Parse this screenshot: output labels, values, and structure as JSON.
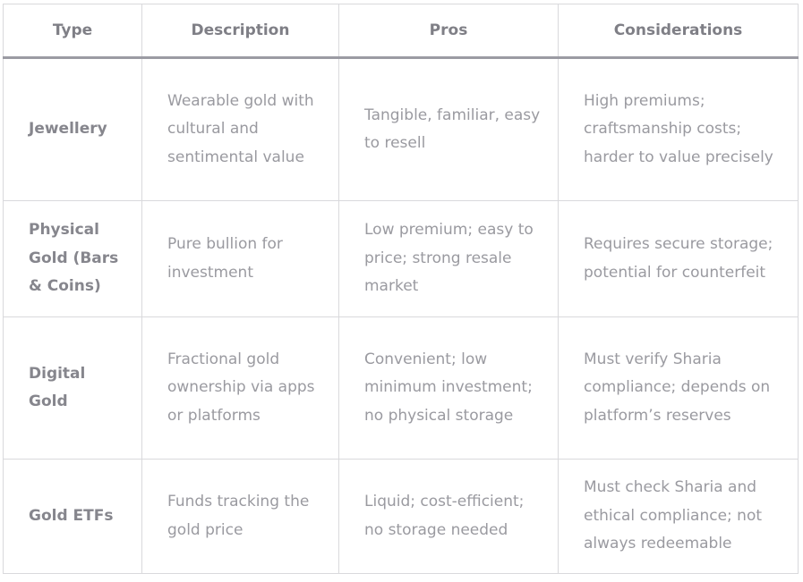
{
  "table": {
    "headers": [
      "Type",
      "Description",
      "Pros",
      "Considerations"
    ],
    "rows": [
      {
        "type": "Jewellery",
        "description": "Wearable gold with cultural and sentimental value",
        "pros": "Tangible, familiar, easy to resell",
        "considerations": "High premiums; craftsmanship costs; harder to value precisely"
      },
      {
        "type": "Physical Gold (Bars & Coins)",
        "description": "Pure bullion for investment",
        "pros": "Low premium; easy to price; strong resale market",
        "considerations": "Requires secure storage; potential for counterfeit"
      },
      {
        "type": "Digital Gold",
        "description": "Fractional gold ownership via apps or platforms",
        "pros": "Convenient; low minimum investment; no physical storage",
        "considerations": "Must verify Sharia compliance; depends on platform’s reserves"
      },
      {
        "type": "Gold ETFs",
        "description": "Funds tracking the gold price",
        "pros": "Liquid; cost-efficient; no storage needed",
        "considerations": "Must check Sharia and ethical compliance; not always redeemable"
      }
    ]
  }
}
